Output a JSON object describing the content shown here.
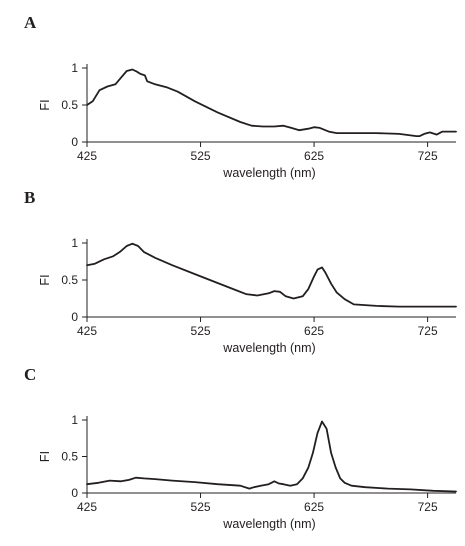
{
  "chart_data": [
    {
      "type": "line",
      "panel_label": "A",
      "xlabel": "wavelength (nm)",
      "ylabel": "FI",
      "xlim": [
        425,
        750
      ],
      "ylim": [
        0,
        1
      ],
      "xticks": [
        425,
        525,
        625,
        725
      ],
      "yticks": [
        0,
        0.5,
        1
      ],
      "ytick_labels": [
        "0",
        "0.5",
        "1"
      ],
      "grid": false,
      "series": [
        {
          "x": [
            425,
            430,
            436,
            443,
            450,
            455,
            460,
            465,
            469,
            472,
            476,
            478,
            485,
            495,
            505,
            520,
            540,
            560,
            570,
            580,
            590,
            598,
            605,
            612,
            620,
            625,
            630,
            638,
            645,
            660,
            680,
            700,
            705,
            715,
            718,
            722,
            727,
            733,
            738,
            750
          ],
          "y": [
            0.5,
            0.55,
            0.7,
            0.75,
            0.78,
            0.87,
            0.96,
            0.98,
            0.95,
            0.92,
            0.9,
            0.82,
            0.78,
            0.74,
            0.68,
            0.55,
            0.4,
            0.27,
            0.22,
            0.21,
            0.21,
            0.22,
            0.19,
            0.16,
            0.18,
            0.2,
            0.19,
            0.14,
            0.12,
            0.12,
            0.12,
            0.11,
            0.1,
            0.08,
            0.08,
            0.11,
            0.13,
            0.1,
            0.14,
            0.14
          ]
        }
      ]
    },
    {
      "type": "line",
      "panel_label": "B",
      "xlabel": "wavelength (nm)",
      "ylabel": "FI",
      "xlim": [
        425,
        750
      ],
      "ylim": [
        0,
        1
      ],
      "xticks": [
        425,
        525,
        625,
        725
      ],
      "yticks": [
        0,
        0.5,
        1
      ],
      "ytick_labels": [
        "0",
        "0.5",
        "1"
      ],
      "grid": false,
      "series": [
        {
          "x": [
            425,
            432,
            440,
            448,
            454,
            460,
            465,
            470,
            475,
            485,
            500,
            520,
            540,
            555,
            565,
            575,
            585,
            590,
            595,
            600,
            607,
            615,
            620,
            625,
            628,
            632,
            635,
            640,
            645,
            652,
            660,
            680,
            700,
            720,
            750
          ],
          "y": [
            0.7,
            0.72,
            0.78,
            0.82,
            0.88,
            0.96,
            0.99,
            0.96,
            0.88,
            0.8,
            0.7,
            0.58,
            0.46,
            0.37,
            0.31,
            0.29,
            0.32,
            0.35,
            0.34,
            0.28,
            0.25,
            0.28,
            0.38,
            0.55,
            0.64,
            0.67,
            0.6,
            0.45,
            0.33,
            0.24,
            0.17,
            0.15,
            0.14,
            0.14,
            0.14
          ]
        }
      ]
    },
    {
      "type": "line",
      "panel_label": "C",
      "xlabel": "wavelength (nm)",
      "ylabel": "FI",
      "xlim": [
        425,
        750
      ],
      "ylim": [
        0,
        1
      ],
      "xticks": [
        425,
        525,
        625,
        725
      ],
      "yticks": [
        0,
        0.5,
        1
      ],
      "ytick_labels": [
        "0",
        "0.5",
        "1"
      ],
      "grid": false,
      "series": [
        {
          "x": [
            425,
            435,
            445,
            455,
            462,
            468,
            475,
            485,
            500,
            520,
            540,
            560,
            568,
            572,
            578,
            585,
            590,
            594,
            598,
            604,
            610,
            615,
            620,
            624,
            628,
            632,
            636,
            640,
            644,
            648,
            652,
            658,
            670,
            690,
            710,
            730,
            750
          ],
          "y": [
            0.12,
            0.14,
            0.17,
            0.16,
            0.18,
            0.21,
            0.2,
            0.19,
            0.17,
            0.15,
            0.12,
            0.1,
            0.06,
            0.08,
            0.1,
            0.12,
            0.16,
            0.13,
            0.12,
            0.1,
            0.12,
            0.2,
            0.35,
            0.55,
            0.82,
            0.98,
            0.88,
            0.55,
            0.35,
            0.2,
            0.14,
            0.1,
            0.08,
            0.06,
            0.05,
            0.03,
            0.02
          ]
        }
      ]
    }
  ]
}
